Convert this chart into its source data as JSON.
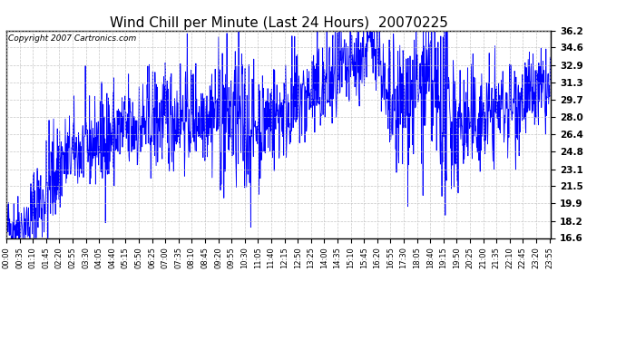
{
  "title": "Wind Chill per Minute (Last 24 Hours)  20070225",
  "copyright": "Copyright 2007 Cartronics.com",
  "line_color": "#0000FF",
  "background_color": "#FFFFFF",
  "plot_bg_color": "#FFFFFF",
  "grid_color": "#C0C0C0",
  "yticks": [
    16.6,
    18.2,
    19.9,
    21.5,
    23.1,
    24.8,
    26.4,
    28.0,
    29.7,
    31.3,
    32.9,
    34.6,
    36.2
  ],
  "ylim": [
    16.6,
    36.2
  ],
  "title_fontsize": 11,
  "copyright_fontsize": 6.5,
  "tick_fontsize": 6,
  "ytick_fontsize": 7.5,
  "xtick_interval": 35,
  "seed": 42
}
